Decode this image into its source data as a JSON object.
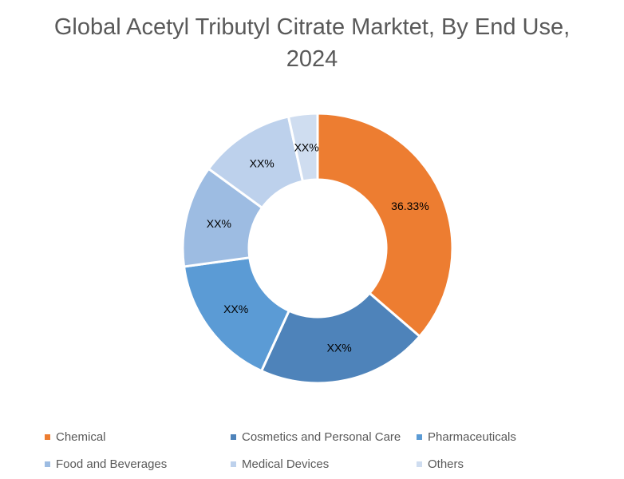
{
  "chart_data": {
    "type": "pie",
    "variant": "donut",
    "title_lines": [
      "Global Acetyl Tributyl Citrate Marktet, By End Use,",
      "2024"
    ],
    "legend_position": "bottom",
    "slices": [
      {
        "name": "Chemical",
        "value": 36.33,
        "label": "36.33%",
        "color": "#ED7D31"
      },
      {
        "name": "Cosmetics and Personal Care",
        "value": 20.5,
        "label": "XX%",
        "color": "#4E83BA"
      },
      {
        "name": "Pharmaceuticals",
        "value": 16.0,
        "label": "XX%",
        "color": "#5B9BD5"
      },
      {
        "name": "Food and Beverages",
        "value": 12.2,
        "label": "XX%",
        "color": "#9DBCE2"
      },
      {
        "name": "Medical Devices",
        "value": 11.5,
        "label": "XX%",
        "color": "#BDD1EC"
      },
      {
        "name": "Others",
        "value": 3.47,
        "label": "XX%",
        "color": "#CFDDF0"
      }
    ]
  }
}
